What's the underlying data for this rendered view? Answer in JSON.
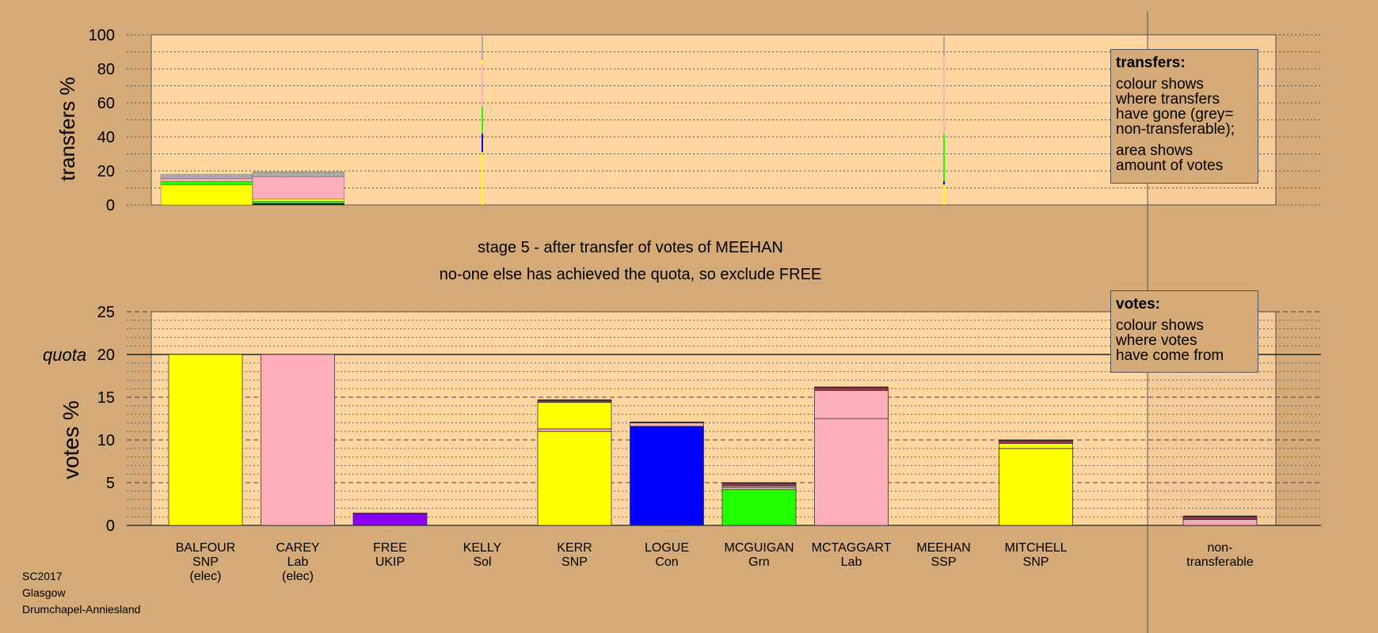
{
  "chart_data": [
    {
      "panel": "transfers",
      "type": "bar",
      "ylabel": "transfers %",
      "ylim": [
        0,
        100
      ],
      "yticks": [
        0,
        20,
        40,
        60,
        80,
        100
      ],
      "bars": [
        {
          "id": "balfour",
          "width_votes": 19.9,
          "segments": [
            {
              "color": "#ffff00",
              "value": 11.8
            },
            {
              "color": "#22ff00",
              "value": 2.0
            },
            {
              "color": "#ffaebb",
              "value": 1.6
            },
            {
              "color": "#aaaaaa",
              "value": 2.4
            }
          ]
        },
        {
          "id": "carey",
          "width_votes": 19.9,
          "segments": [
            {
              "color": "#000000",
              "value": 1.0
            },
            {
              "color": "#22ff00",
              "value": 1.2
            },
            {
              "color": "#ffff00",
              "value": 1.2
            },
            {
              "color": "#ffaebb",
              "value": 13.0
            },
            {
              "color": "#aaaaaa",
              "value": 3.0
            }
          ]
        },
        {
          "id": "free",
          "width_votes": 0.2,
          "segments": [
            {
              "color": "#ffff00",
              "value": 31
            },
            {
              "color": "#0000ff",
              "value": 11
            },
            {
              "color": "#22ff00",
              "value": 16
            },
            {
              "color": "#ffaebb",
              "value": 25
            },
            {
              "color": "#ffff00",
              "value": 2
            },
            {
              "color": "#aaaaaa",
              "value": 15
            }
          ]
        },
        {
          "id": "meehan",
          "width_votes": 0.2,
          "segments": [
            {
              "color": "#ffff00",
              "value": 12
            },
            {
              "color": "#0000ff",
              "value": 2
            },
            {
              "color": "#22ff00",
              "value": 28
            },
            {
              "color": "#ffaebb",
              "value": 46
            },
            {
              "color": "#aaaaaa",
              "value": 12
            }
          ]
        }
      ]
    },
    {
      "panel": "votes",
      "type": "bar",
      "ylabel": "votes %",
      "ylim": [
        0,
        25
      ],
      "yticks": [
        0,
        5,
        10,
        15,
        20,
        25
      ],
      "quota": 20,
      "quota_label": "quota",
      "categories": [
        {
          "name": "BALFOUR",
          "party": "SNP",
          "note": "(elec)",
          "segments": [
            {
              "color": "#ffff00",
              "value": 20.0
            }
          ]
        },
        {
          "name": "CAREY",
          "party": "Lab",
          "note": "(elec)",
          "segments": [
            {
              "color": "#ffaebb",
              "value": 20.0
            }
          ]
        },
        {
          "name": "FREE",
          "party": "UKIP",
          "note": "",
          "segments": [
            {
              "color": "#8800ee",
              "value": 1.35
            },
            {
              "color": "#aa3344",
              "value": 0.1
            }
          ]
        },
        {
          "name": "KELLY",
          "party": "Sol",
          "note": "",
          "segments": []
        },
        {
          "name": "KERR",
          "party": "SNP",
          "note": "",
          "segments": [
            {
              "color": "#ffff00",
              "value": 11.0
            },
            {
              "color": "#ffaebb",
              "value": 0.3
            },
            {
              "color": "#ffff00",
              "value": 3.1
            },
            {
              "color": "#aa3344",
              "value": 0.2
            },
            {
              "color": "#000000",
              "value": 0.1
            }
          ]
        },
        {
          "name": "LOGUE",
          "party": "Con",
          "note": "",
          "segments": [
            {
              "color": "#0000ff",
              "value": 11.6
            },
            {
              "color": "#ffaebb",
              "value": 0.4
            },
            {
              "color": "#000000",
              "value": 0.1
            }
          ]
        },
        {
          "name": "MCGUIGAN",
          "party": "Grn",
          "note": "",
          "segments": [
            {
              "color": "#22ff00",
              "value": 4.2
            },
            {
              "color": "#ffff00",
              "value": 0.2
            },
            {
              "color": "#ffaebb",
              "value": 0.2
            },
            {
              "color": "#aa3344",
              "value": 0.3
            },
            {
              "color": "#000000",
              "value": 0.1
            }
          ]
        },
        {
          "name": "MCTAGGART",
          "party": "Lab",
          "note": "",
          "segments": [
            {
              "color": "#ffaebb",
              "value": 12.5
            },
            {
              "color": "#ffaebb",
              "value": 3.3
            },
            {
              "color": "#aa3344",
              "value": 0.3
            },
            {
              "color": "#000000",
              "value": 0.1
            }
          ]
        },
        {
          "name": "MEEHAN",
          "party": "SSP",
          "note": "",
          "segments": []
        },
        {
          "name": "MITCHELL",
          "party": "SNP",
          "note": "",
          "segments": [
            {
              "color": "#ffff00",
              "value": 9.0
            },
            {
              "color": "#ffff00",
              "value": 0.6
            },
            {
              "color": "#aa3344",
              "value": 0.3
            },
            {
              "color": "#000000",
              "value": 0.1
            }
          ]
        }
      ],
      "nontransferable": {
        "label_line1": "non-",
        "label_line2": "transferable",
        "segments": [
          {
            "color": "#ffaebb",
            "value": 0.7
          },
          {
            "color": "#aa3344",
            "value": 0.3
          },
          {
            "color": "#000000",
            "value": 0.1
          }
        ]
      }
    }
  ],
  "stage_title": "stage 5 - after transfer of votes of MEEHAN",
  "stage_subtitle": "no-one else has achieved the quota, so exclude FREE",
  "legend_transfers": {
    "title": "transfers:",
    "line1": "colour shows",
    "line2": "where transfers",
    "line3": "have gone (grey=",
    "line4": "non-transferable);",
    "line5": "area shows",
    "line6": "amount of votes"
  },
  "legend_votes": {
    "title": "votes:",
    "line1": "colour shows",
    "line2": "where votes",
    "line3": "have come from"
  },
  "footer": {
    "line1": "SC2017",
    "line2": "Glasgow",
    "line3": "Drumchapel-Anniesland"
  },
  "colors": {
    "background": "#d4aa78",
    "plot": "#ffd5a0"
  }
}
